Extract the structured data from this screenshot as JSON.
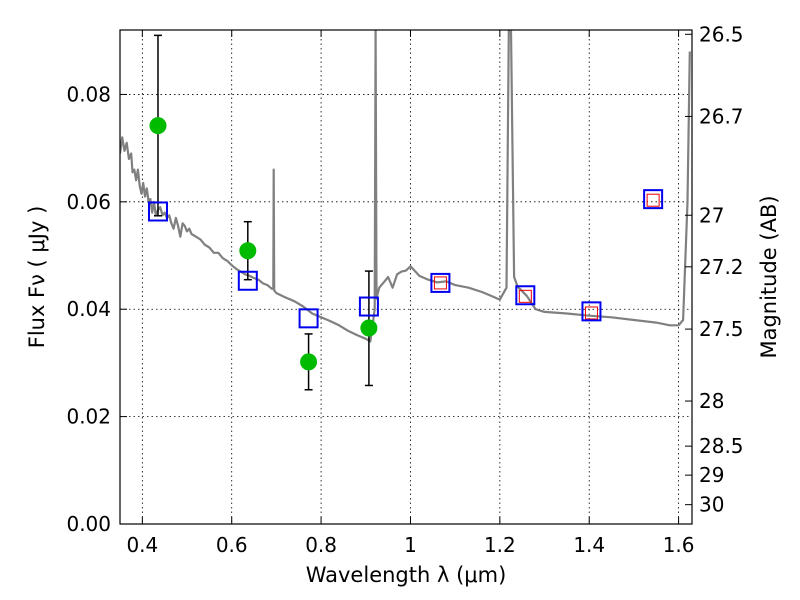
{
  "chart_data": {
    "type": "scatter",
    "xlabel": "Wavelength  λ (μm)",
    "ylabel": "Flux  Fν  ( μJy )",
    "y2label": "Magnitude (AB)",
    "xlim": [
      0.35,
      1.63
    ],
    "ylim": [
      0.0,
      0.092
    ],
    "grid": true,
    "x_ticks": [
      0.4,
      0.6,
      0.8,
      1.0,
      1.2,
      1.4,
      1.6
    ],
    "x_tick_labels": [
      "0.4",
      "0.6",
      "0.8",
      "1",
      "1.2",
      "1.4",
      "1.6"
    ],
    "y_ticks": [
      0.0,
      0.02,
      0.04,
      0.06,
      0.08
    ],
    "y_tick_labels": [
      "0.00",
      "0.02",
      "0.04",
      "0.06",
      "0.08"
    ],
    "mag_ticks": [
      {
        "label": "26.5",
        "flux": 0.0912
      },
      {
        "label": "26.7",
        "flux": 0.0759
      },
      {
        "label": "27",
        "flux": 0.0575
      },
      {
        "label": "27.2",
        "flux": 0.0479
      },
      {
        "label": "27.5",
        "flux": 0.0363
      },
      {
        "label": "28",
        "flux": 0.0229
      },
      {
        "label": "28.5",
        "flux": 0.0145
      },
      {
        "label": "29",
        "flux": 0.0091
      },
      {
        "label": "30",
        "flux": 0.0036
      }
    ],
    "observed": {
      "color": "#00bb00",
      "points": [
        {
          "x": 0.435,
          "y": 0.0742,
          "ylo": 0.0574,
          "yhi": 0.091
        },
        {
          "x": 0.636,
          "y": 0.0509,
          "ylo": 0.0455,
          "yhi": 0.0563
        },
        {
          "x": 0.772,
          "y": 0.0302,
          "ylo": 0.025,
          "yhi": 0.0354
        },
        {
          "x": 0.907,
          "y": 0.0365,
          "ylo": 0.0258,
          "yhi": 0.0471
        }
      ]
    },
    "model_photometry": {
      "color": "#0000ee",
      "points": [
        {
          "x": 0.435,
          "y": 0.0582
        },
        {
          "x": 0.636,
          "y": 0.0453
        },
        {
          "x": 0.772,
          "y": 0.0383
        },
        {
          "x": 0.907,
          "y": 0.0405
        },
        {
          "x": 1.067,
          "y": 0.0449
        },
        {
          "x": 1.257,
          "y": 0.0426
        },
        {
          "x": 1.405,
          "y": 0.0396
        },
        {
          "x": 1.543,
          "y": 0.0605
        }
      ]
    },
    "upper_limits": {
      "color": "#ee0000",
      "points": [
        {
          "x": 1.067,
          "y": 0.0449
        },
        {
          "x": 1.257,
          "y": 0.0424
        },
        {
          "x": 1.405,
          "y": 0.0393
        },
        {
          "x": 1.543,
          "y": 0.0603
        }
      ]
    },
    "template_spectrum": {
      "color": "#808080",
      "points": [
        [
          0.35,
          0.069
        ],
        [
          0.355,
          0.072
        ],
        [
          0.36,
          0.0695
        ],
        [
          0.365,
          0.071
        ],
        [
          0.37,
          0.068
        ],
        [
          0.375,
          0.069
        ],
        [
          0.378,
          0.0655
        ],
        [
          0.382,
          0.066
        ],
        [
          0.386,
          0.064
        ],
        [
          0.39,
          0.066
        ],
        [
          0.394,
          0.063
        ],
        [
          0.398,
          0.0615
        ],
        [
          0.402,
          0.0635
        ],
        [
          0.406,
          0.061
        ],
        [
          0.41,
          0.0625
        ],
        [
          0.414,
          0.06
        ],
        [
          0.418,
          0.0605
        ],
        [
          0.422,
          0.058
        ],
        [
          0.426,
          0.06
        ],
        [
          0.43,
          0.0575
        ],
        [
          0.435,
          0.0585
        ],
        [
          0.44,
          0.059
        ],
        [
          0.445,
          0.0575
        ],
        [
          0.45,
          0.058
        ],
        [
          0.455,
          0.057
        ],
        [
          0.46,
          0.0575
        ],
        [
          0.465,
          0.056
        ],
        [
          0.47,
          0.055
        ],
        [
          0.475,
          0.057
        ],
        [
          0.48,
          0.0555
        ],
        [
          0.485,
          0.0535
        ],
        [
          0.49,
          0.056
        ],
        [
          0.495,
          0.0555
        ],
        [
          0.5,
          0.0545
        ],
        [
          0.505,
          0.055
        ],
        [
          0.51,
          0.054
        ],
        [
          0.52,
          0.0535
        ],
        [
          0.53,
          0.053
        ],
        [
          0.54,
          0.052
        ],
        [
          0.55,
          0.0515
        ],
        [
          0.56,
          0.0505
        ],
        [
          0.57,
          0.0505
        ],
        [
          0.58,
          0.0495
        ],
        [
          0.59,
          0.049
        ],
        [
          0.6,
          0.0482
        ],
        [
          0.61,
          0.0475
        ],
        [
          0.62,
          0.047
        ],
        [
          0.63,
          0.0465
        ],
        [
          0.64,
          0.0462
        ],
        [
          0.65,
          0.0458
        ],
        [
          0.66,
          0.0455
        ],
        [
          0.67,
          0.0448
        ],
        [
          0.68,
          0.0445
        ],
        [
          0.69,
          0.0438
        ],
        [
          0.693,
          0.0438
        ],
        [
          0.694,
          0.066
        ],
        [
          0.695,
          0.0435
        ],
        [
          0.7,
          0.043
        ],
        [
          0.72,
          0.0422
        ],
        [
          0.74,
          0.0415
        ],
        [
          0.76,
          0.0405
        ],
        [
          0.78,
          0.0392
        ],
        [
          0.8,
          0.0385
        ],
        [
          0.82,
          0.0378
        ],
        [
          0.84,
          0.037
        ],
        [
          0.86,
          0.036
        ],
        [
          0.88,
          0.0352
        ],
        [
          0.9,
          0.0345
        ],
        [
          0.91,
          0.034
        ],
        [
          0.915,
          0.037
        ],
        [
          0.92,
          0.04
        ],
        [
          0.922,
          0.092
        ],
        [
          0.924,
          0.042
        ],
        [
          0.93,
          0.044
        ],
        [
          0.94,
          0.045
        ],
        [
          0.95,
          0.046
        ],
        [
          0.96,
          0.044
        ],
        [
          0.97,
          0.0465
        ],
        [
          0.98,
          0.047
        ],
        [
          0.99,
          0.0472
        ],
        [
          1.0,
          0.048
        ],
        [
          1.02,
          0.0462
        ],
        [
          1.04,
          0.0455
        ],
        [
          1.06,
          0.045
        ],
        [
          1.08,
          0.0452
        ],
        [
          1.1,
          0.0445
        ],
        [
          1.13,
          0.044
        ],
        [
          1.16,
          0.0432
        ],
        [
          1.18,
          0.0425
        ],
        [
          1.2,
          0.0418
        ],
        [
          1.215,
          0.044
        ],
        [
          1.22,
          0.092
        ],
        [
          1.225,
          0.092
        ],
        [
          1.232,
          0.046
        ],
        [
          1.24,
          0.0442
        ],
        [
          1.26,
          0.0425
        ],
        [
          1.28,
          0.04
        ],
        [
          1.3,
          0.0395
        ],
        [
          1.35,
          0.0392
        ],
        [
          1.4,
          0.0388
        ],
        [
          1.45,
          0.0385
        ],
        [
          1.5,
          0.038
        ],
        [
          1.55,
          0.0375
        ],
        [
          1.58,
          0.037
        ],
        [
          1.6,
          0.037
        ],
        [
          1.61,
          0.038
        ],
        [
          1.62,
          0.06
        ],
        [
          1.625,
          0.088
        ]
      ]
    }
  }
}
